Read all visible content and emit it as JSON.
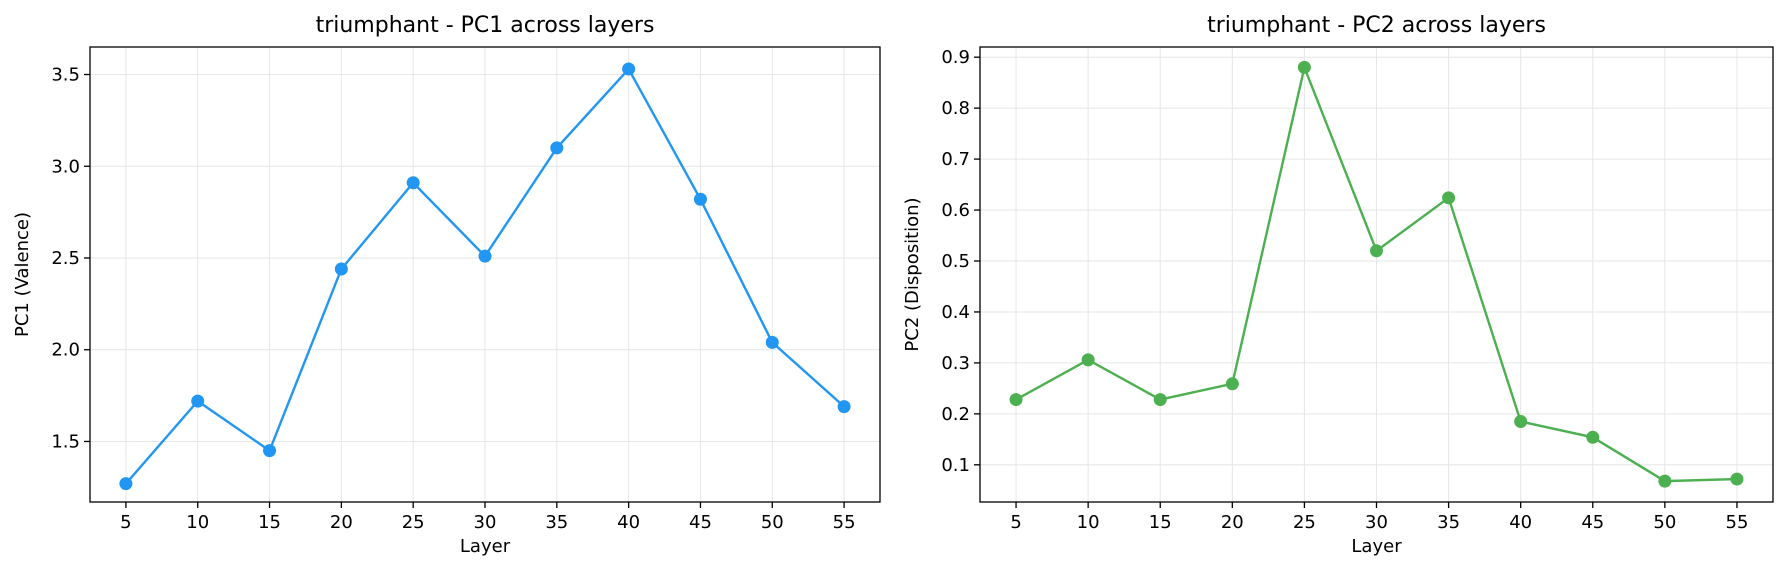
{
  "chart_data": [
    {
      "type": "line",
      "title": "triumphant - PC1 across layers",
      "xlabel": "Layer",
      "ylabel": "PC1 (Valence)",
      "x": [
        5,
        10,
        15,
        20,
        25,
        30,
        35,
        40,
        45,
        50,
        55
      ],
      "x_ticks": [
        "5",
        "10",
        "15",
        "20",
        "25",
        "30",
        "35",
        "40",
        "45",
        "50",
        "55"
      ],
      "y_ticks": [
        "1.5",
        "2.0",
        "2.5",
        "3.0",
        "3.5"
      ],
      "xlim": [
        2.5,
        57.5
      ],
      "ylim": [
        1.17,
        3.65
      ],
      "grid": true,
      "color": "#2196F3",
      "series": [
        {
          "values": [
            1.27,
            1.72,
            1.45,
            2.44,
            2.91,
            2.51,
            3.1,
            3.53,
            2.82,
            2.04,
            1.69
          ]
        }
      ]
    },
    {
      "type": "line",
      "title": "triumphant - PC2 across layers",
      "xlabel": "Layer",
      "ylabel": "PC2 (Disposition)",
      "x": [
        5,
        10,
        15,
        20,
        25,
        30,
        35,
        40,
        45,
        50,
        55
      ],
      "x_ticks": [
        "5",
        "10",
        "15",
        "20",
        "25",
        "30",
        "35",
        "40",
        "45",
        "50",
        "55"
      ],
      "y_ticks": [
        "0.1",
        "0.2",
        "0.3",
        "0.4",
        "0.5",
        "0.6",
        "0.7",
        "0.8",
        "0.9"
      ],
      "xlim": [
        2.5,
        57.5
      ],
      "ylim": [
        0.027,
        0.92
      ],
      "grid": true,
      "color": "#4CAF50",
      "series": [
        {
          "values": [
            0.228,
            0.306,
            0.228,
            0.259,
            0.88,
            0.52,
            0.624,
            0.185,
            0.154,
            0.068,
            0.072
          ]
        }
      ]
    }
  ]
}
